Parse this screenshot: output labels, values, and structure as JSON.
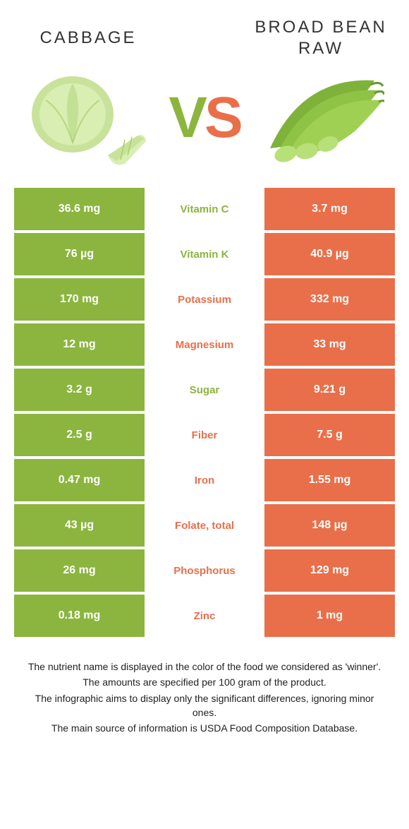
{
  "colors": {
    "left_bg": "#8bb53e",
    "right_bg": "#e96f4a",
    "text_white": "#ffffff",
    "header_text": "#333333"
  },
  "header": {
    "left_title": "CABBAGE",
    "right_title": "BROAD BEAN RAW"
  },
  "vs": {
    "v": "V",
    "s": "S"
  },
  "rows": [
    {
      "left": "36.6 mg",
      "label": "Vitamin C",
      "right": "3.7 mg",
      "winner": "left"
    },
    {
      "left": "76 µg",
      "label": "Vitamin K",
      "right": "40.9 µg",
      "winner": "left"
    },
    {
      "left": "170 mg",
      "label": "Potassium",
      "right": "332 mg",
      "winner": "right"
    },
    {
      "left": "12 mg",
      "label": "Magnesium",
      "right": "33 mg",
      "winner": "right"
    },
    {
      "left": "3.2 g",
      "label": "Sugar",
      "right": "9.21 g",
      "winner": "left"
    },
    {
      "left": "2.5 g",
      "label": "Fiber",
      "right": "7.5 g",
      "winner": "right"
    },
    {
      "left": "0.47 mg",
      "label": "Iron",
      "right": "1.55 mg",
      "winner": "right"
    },
    {
      "left": "43 µg",
      "label": "Folate, total",
      "right": "148 µg",
      "winner": "right"
    },
    {
      "left": "26 mg",
      "label": "Phosphorus",
      "right": "129 mg",
      "winner": "right"
    },
    {
      "left": "0.18 mg",
      "label": "Zinc",
      "right": "1 mg",
      "winner": "right"
    }
  ],
  "footnotes": [
    "The nutrient name is displayed in the color of the food we considered as 'winner'.",
    "The amounts are specified per 100 gram of the product.",
    "The infographic aims to display only the significant differences, ignoring minor ones.",
    "The main source of information is USDA Food Composition Database."
  ]
}
